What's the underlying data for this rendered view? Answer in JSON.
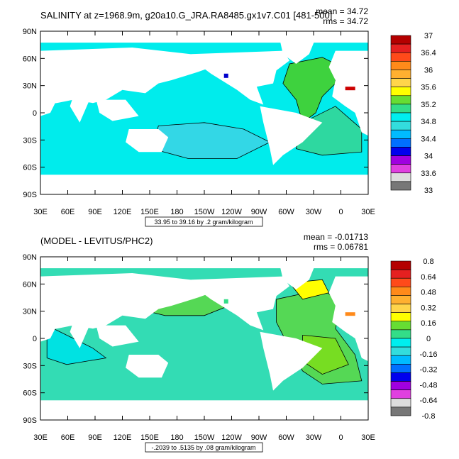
{
  "panels": [
    {
      "title": "SALINITY at z=1968.9m, g20a10.G_JRA.RA8485.gx1v7.C01 [481-500]",
      "mean_text": "mean = 34.72",
      "rms_text": "rms = 34.72",
      "range_note": "33.95 to 39.16 by .2 gram/kilogram",
      "colorbar_labels": [
        "37",
        "36.4",
        "36",
        "35.6",
        "35.2",
        "34.8",
        "34.4",
        "34",
        "33.6",
        "33"
      ],
      "colorbar_colors": [
        "#b40000",
        "#e52020",
        "#ff4a1a",
        "#ff8a1a",
        "#ffb030",
        "#ffd54a",
        "#ffff00",
        "#66dd33",
        "#33dd88",
        "#00eeee",
        "#33dddd",
        "#00bbff",
        "#0070ff",
        "#0000ee",
        "#a000e0",
        "#e040e0",
        "#dddddd",
        "#777777"
      ],
      "field": {
        "ocean_main": "#00ecec",
        "atlantic": "#3ed23e",
        "south_pacific_blob": "#33d7e6",
        "south_atlantic": "#2ed8a0",
        "antarctic_band": "#00ecec",
        "mediterranean": "#cc0000",
        "small_blue_patch": "#0000cc"
      }
    },
    {
      "title": "(MODEL - LEVITUS/PHC2)",
      "mean_text": "mean = -0.01713",
      "rms_text": "rms = 0.06781",
      "range_note": "-.2039 to .5135 by .08 gram/kilogram",
      "colorbar_labels": [
        "0.8",
        "0.64",
        "0.48",
        "0.32",
        "0.16",
        "0",
        "-0.16",
        "-0.32",
        "-0.48",
        "-0.64",
        "-0.8"
      ],
      "colorbar_colors": [
        "#b40000",
        "#e52020",
        "#ff4a1a",
        "#ff8a1a",
        "#ffb030",
        "#ffd54a",
        "#ffff00",
        "#66dd33",
        "#33dd88",
        "#00eeee",
        "#33dddd",
        "#00bbff",
        "#0070ff",
        "#0000ee",
        "#a000e0",
        "#e040e0",
        "#dddddd",
        "#777777"
      ],
      "field": {
        "ocean_main": "#33dcb4",
        "north_pacific": "#55d855",
        "indian_blob": "#00e2e2",
        "atlantic": "#55d855",
        "atlantic_core": "#77dd22",
        "north_atlantic_yellow": "#ffff00",
        "mediterranean": "#ff8a1a",
        "small_blue_patch": "#33dd88"
      }
    }
  ],
  "axes": {
    "lat_labels": [
      "90N",
      "60N",
      "30N",
      "0",
      "30S",
      "60S",
      "90S"
    ],
    "lon_labels": [
      "30E",
      "60E",
      "90E",
      "120E",
      "150E",
      "180",
      "150W",
      "120W",
      "90W",
      "60W",
      "30W",
      "0",
      "30E"
    ]
  },
  "chart_data": [
    {
      "type": "heatmap",
      "title": "SALINITY at z=1968.9m, g20a10.G_JRA.RA8485.gx1v7.C01 [481-500]",
      "x": "longitude",
      "y": "latitude",
      "xlim": [
        30,
        390
      ],
      "ylim": [
        -90,
        90
      ],
      "xticks": [
        "30E",
        "60E",
        "90E",
        "120E",
        "150E",
        "180",
        "150W",
        "120W",
        "90W",
        "60W",
        "30W",
        "0",
        "30E"
      ],
      "yticks": [
        "90N",
        "60N",
        "30N",
        "0",
        "30S",
        "60S",
        "90S"
      ],
      "colorbar_levels": [
        33,
        33.2,
        33.4,
        33.6,
        33.8,
        34,
        34.2,
        34.4,
        34.6,
        34.8,
        35,
        35.2,
        35.4,
        35.6,
        35.8,
        36,
        36.2,
        36.4,
        36.6,
        36.8,
        37
      ],
      "colorbar_labels": [
        "37",
        "36.4",
        "36",
        "35.6",
        "35.2",
        "34.8",
        "34.4",
        "34",
        "33.6",
        "33"
      ],
      "mean": 34.72,
      "rms": 34.72,
      "data_range": [
        33.95,
        39.16
      ],
      "interval": 0.2,
      "units": "gram/kilogram"
    },
    {
      "type": "heatmap",
      "title": "(MODEL - LEVITUS/PHC2)",
      "x": "longitude",
      "y": "latitude",
      "xlim": [
        30,
        390
      ],
      "ylim": [
        -90,
        90
      ],
      "xticks": [
        "30E",
        "60E",
        "90E",
        "120E",
        "150E",
        "180",
        "150W",
        "120W",
        "90W",
        "60W",
        "30W",
        "0",
        "30E"
      ],
      "yticks": [
        "90N",
        "60N",
        "30N",
        "0",
        "30S",
        "60S",
        "90S"
      ],
      "colorbar_levels": [
        -0.8,
        -0.72,
        -0.64,
        -0.56,
        -0.48,
        -0.4,
        -0.32,
        -0.24,
        -0.16,
        -0.08,
        0,
        0.08,
        0.16,
        0.24,
        0.32,
        0.4,
        0.48,
        0.56,
        0.64,
        0.72,
        0.8
      ],
      "colorbar_labels": [
        "0.8",
        "0.64",
        "0.48",
        "0.32",
        "0.16",
        "0",
        "-0.16",
        "-0.32",
        "-0.48",
        "-0.64",
        "-0.8"
      ],
      "mean": -0.01713,
      "rms": 0.06781,
      "data_range": [
        -0.2039,
        0.5135
      ],
      "interval": 0.08,
      "units": "gram/kilogram"
    }
  ]
}
